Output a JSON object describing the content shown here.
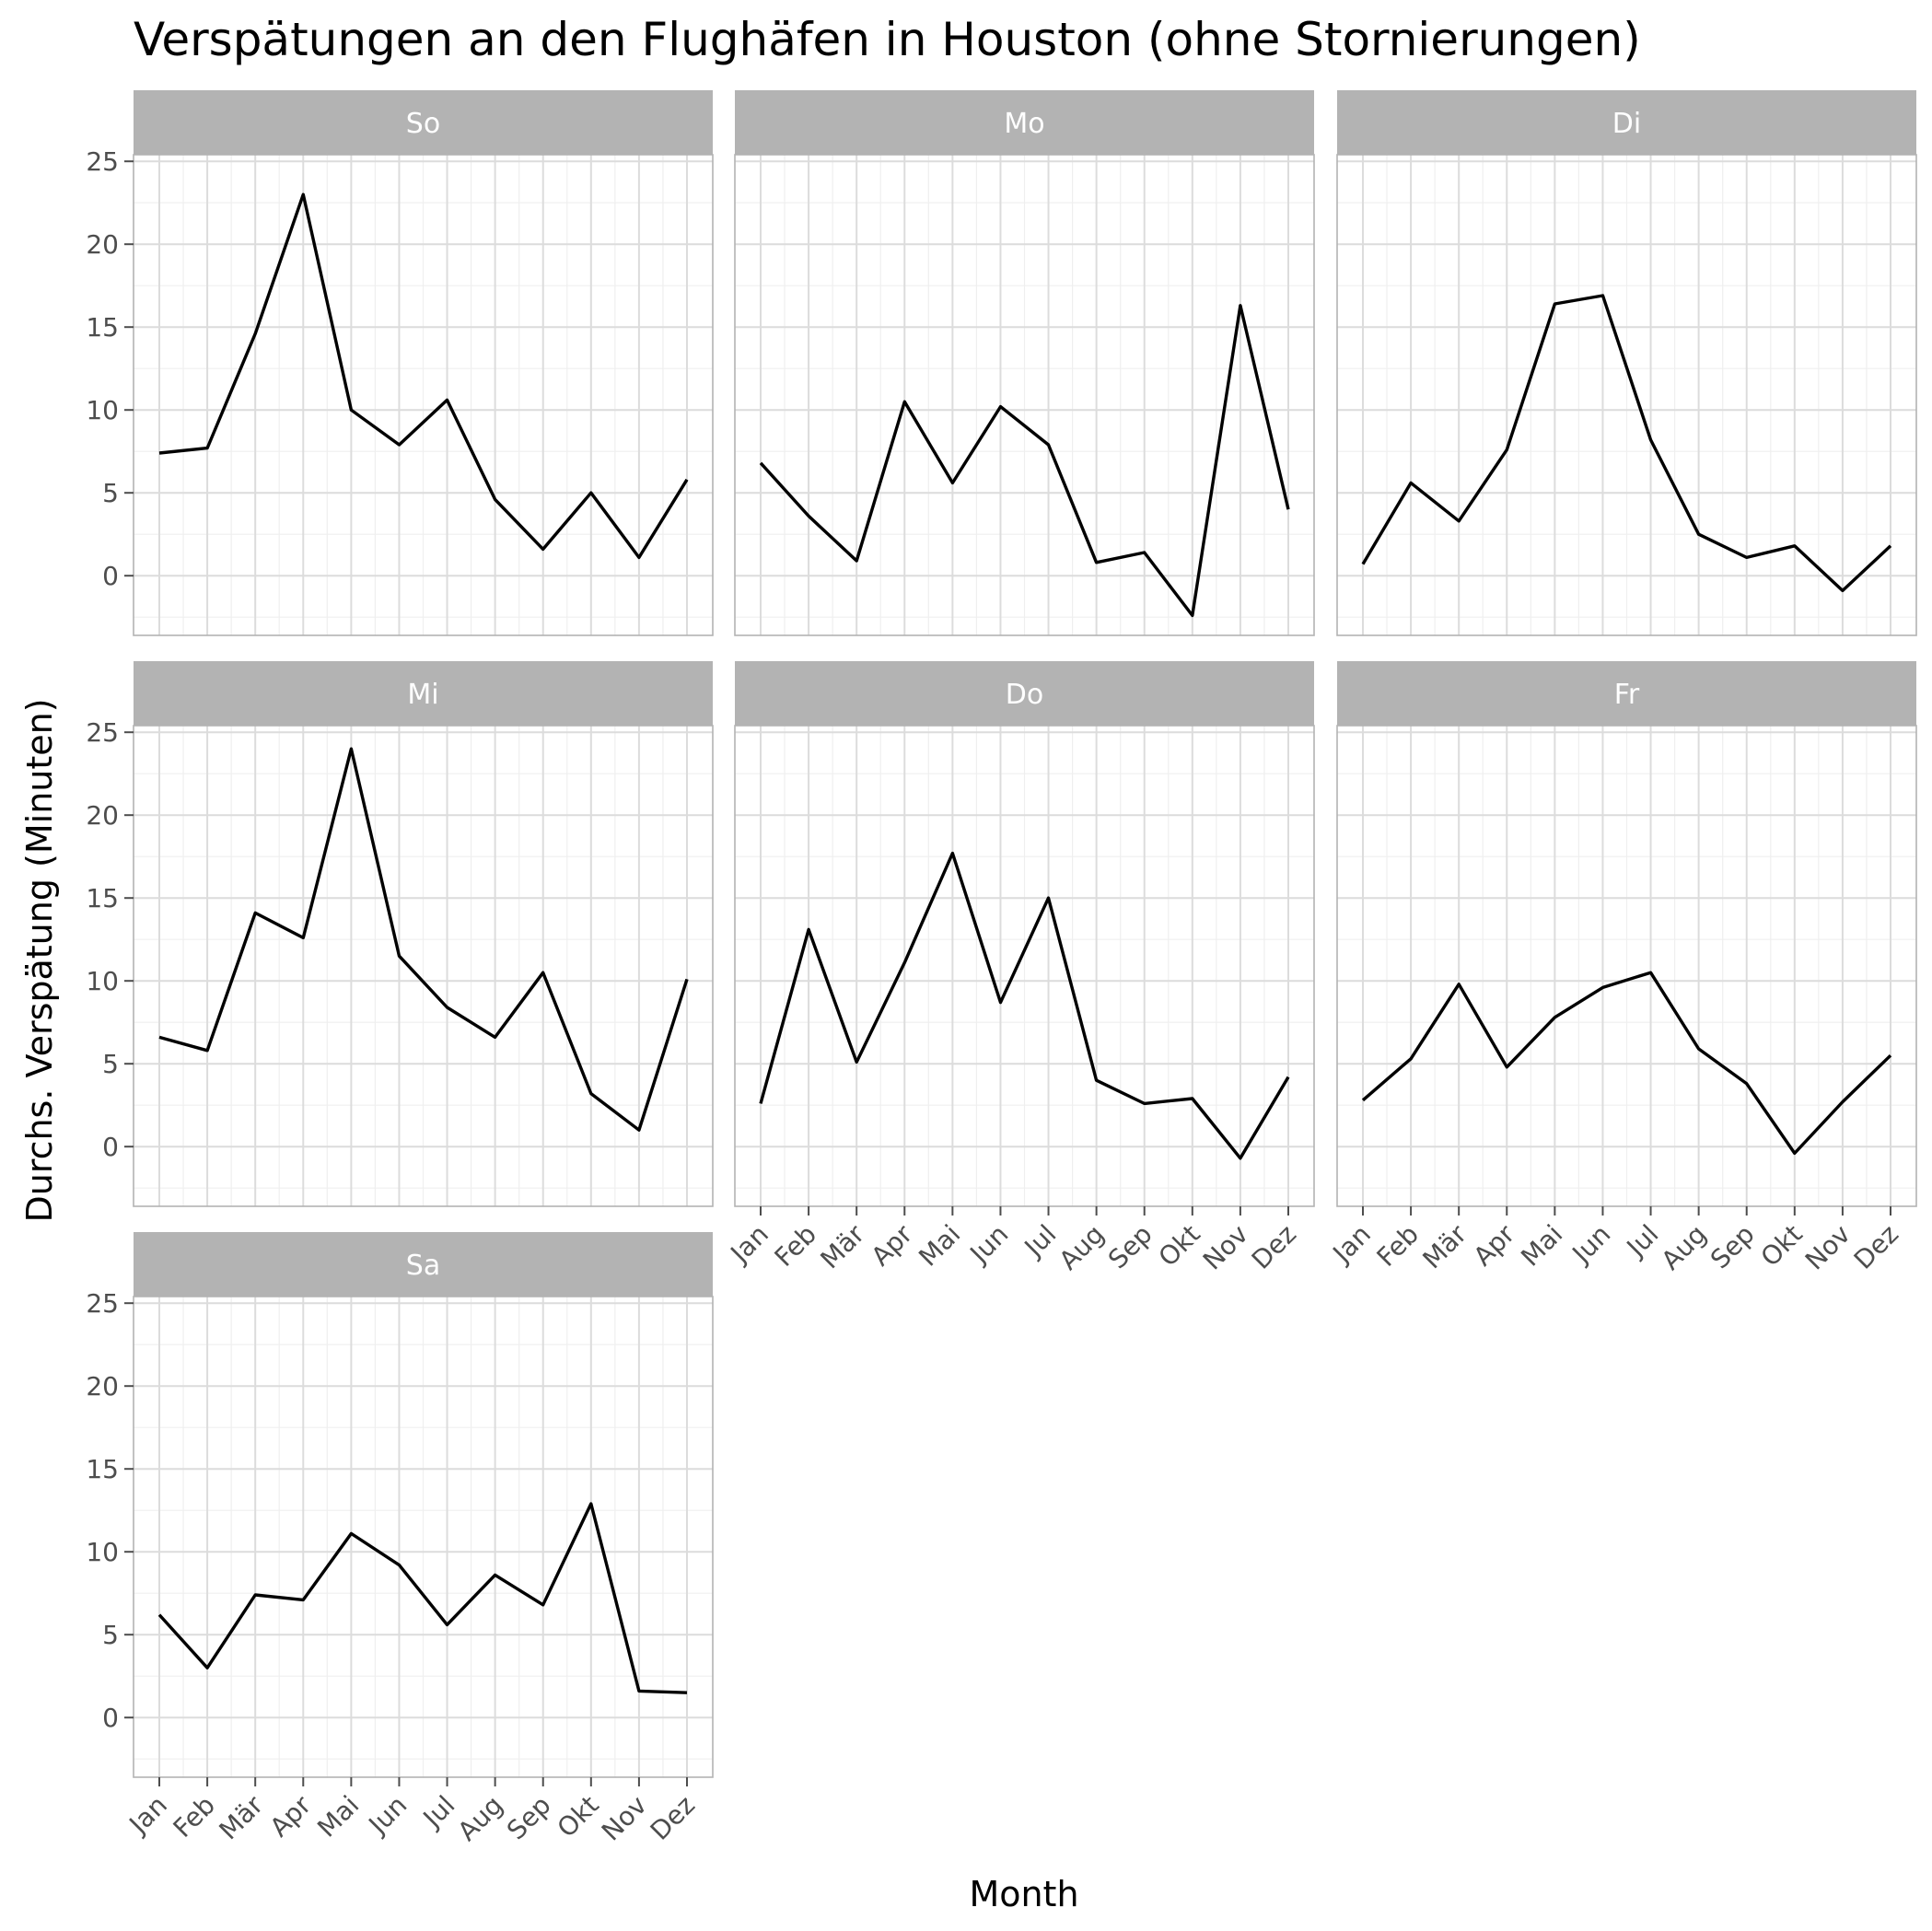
{
  "chart_data": {
    "type": "line",
    "facet": "small-multiples",
    "title": "Verspätungen an den Flughäfen in Houston (ohne Stornierungen)",
    "xlabel": "Month",
    "ylabel": "Durchs. Verspätung (Minuten)",
    "categories": [
      "Jan",
      "Feb",
      "Mär",
      "Apr",
      "Mai",
      "Jun",
      "Jul",
      "Aug",
      "Sep",
      "Okt",
      "Nov",
      "Dez"
    ],
    "yticks": [
      0,
      5,
      10,
      15,
      20,
      25
    ],
    "ylim": [
      -3.6,
      25.4
    ],
    "grid": true,
    "line_color": "#000000",
    "strip_color": "#b3b3b3",
    "panels": [
      {
        "name": "So",
        "values": [
          7.4,
          7.7,
          14.6,
          23.0,
          10.0,
          7.9,
          10.6,
          4.6,
          1.6,
          5.0,
          1.1,
          5.8
        ]
      },
      {
        "name": "Mo",
        "values": [
          6.8,
          3.6,
          0.9,
          10.5,
          5.6,
          10.2,
          7.9,
          0.8,
          1.4,
          -2.4,
          16.3,
          4.0
        ]
      },
      {
        "name": "Di",
        "values": [
          0.7,
          5.6,
          3.3,
          7.6,
          16.4,
          16.9,
          8.2,
          2.5,
          1.1,
          1.8,
          -0.9,
          1.8
        ]
      },
      {
        "name": "Mi",
        "values": [
          6.6,
          5.8,
          14.1,
          12.6,
          24.0,
          11.5,
          8.4,
          6.6,
          10.5,
          3.2,
          1.0,
          10.1
        ]
      },
      {
        "name": "Do",
        "values": [
          2.6,
          13.1,
          5.1,
          11.1,
          17.7,
          8.7,
          15.0,
          4.0,
          2.6,
          2.9,
          -0.7,
          4.2
        ]
      },
      {
        "name": "Fr",
        "values": [
          2.8,
          5.3,
          9.8,
          4.8,
          7.8,
          9.6,
          10.5,
          5.9,
          3.8,
          -0.4,
          2.7,
          5.5
        ]
      },
      {
        "name": "Sa",
        "values": [
          6.2,
          3.0,
          7.4,
          7.1,
          11.1,
          9.2,
          5.6,
          8.6,
          6.8,
          12.9,
          1.6,
          1.5
        ]
      }
    ]
  }
}
